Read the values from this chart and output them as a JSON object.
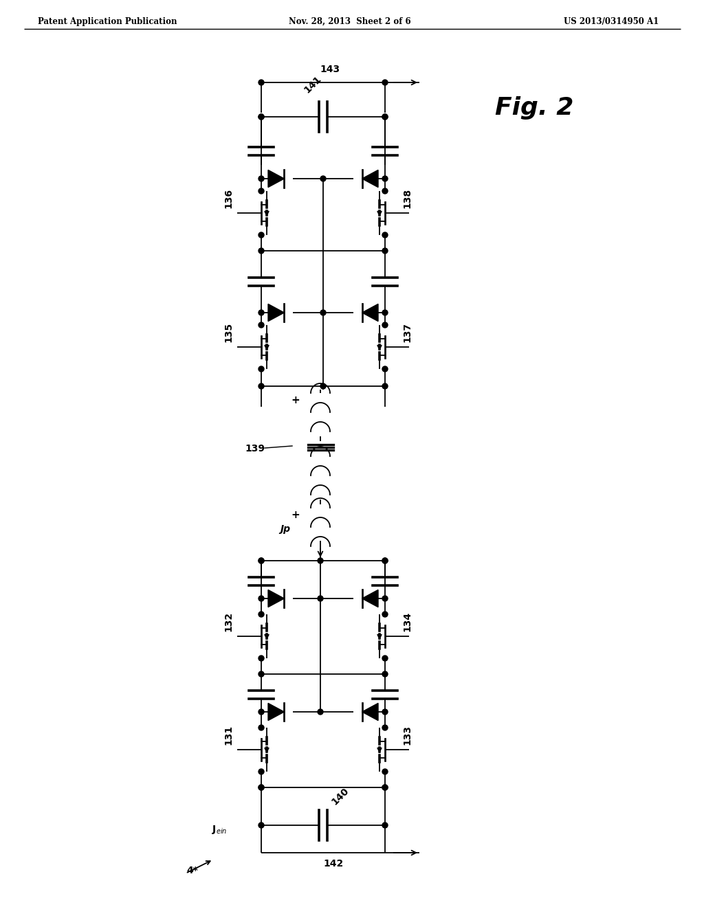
{
  "header_left": "Patent Application Publication",
  "header_mid": "Nov. 28, 2013  Sheet 2 of 6",
  "header_right": "US 2013/0314950 A1",
  "fig_label": "Fig. 2",
  "background": "#ffffff"
}
